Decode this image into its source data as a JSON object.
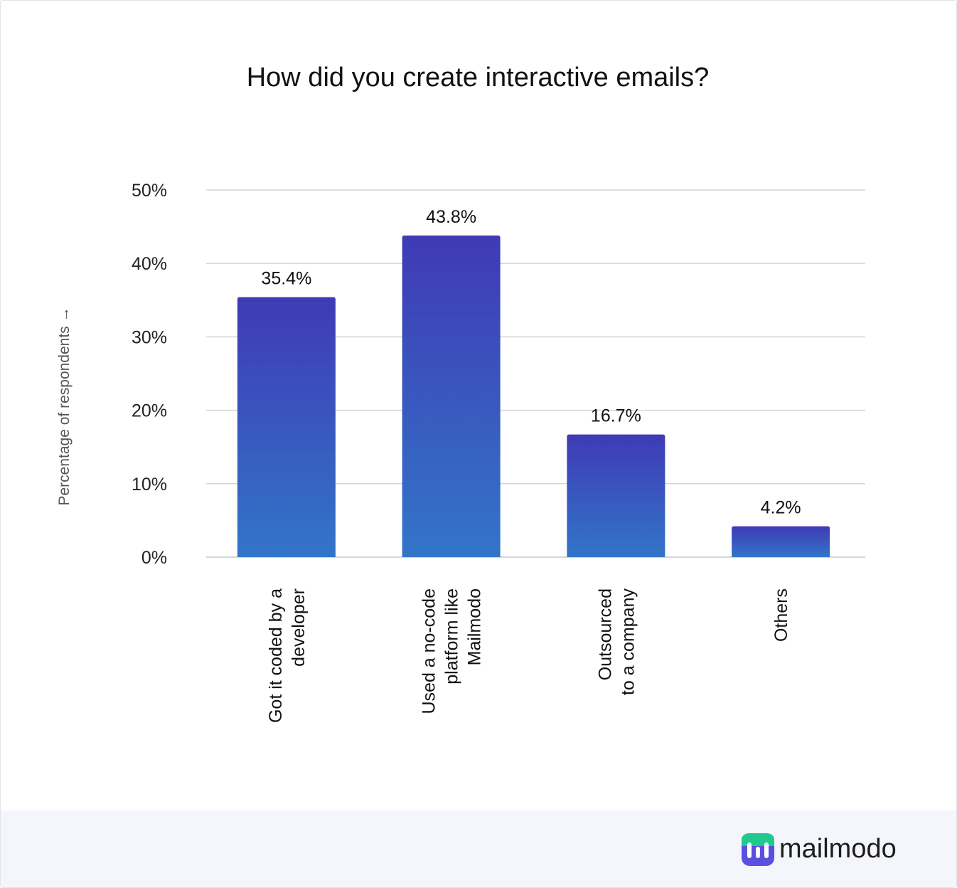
{
  "chart_data": {
    "type": "bar",
    "title": "How did you create interactive emails?",
    "ylabel": "Percentage of respondents →",
    "xlabel": "",
    "ylim": [
      0,
      50
    ],
    "yticks": [
      "0%",
      "10%",
      "20%",
      "30%",
      "40%",
      "50%"
    ],
    "ytick_values": [
      0,
      10,
      20,
      30,
      40,
      50
    ],
    "grid": true,
    "categories": [
      [
        "Got it coded by a",
        "developer"
      ],
      [
        "Used a no-code",
        "platform like",
        "Mailmodo"
      ],
      [
        "Outsourced",
        "to a company"
      ],
      [
        "Others"
      ]
    ],
    "values": [
      35.4,
      43.8,
      16.7,
      4.2
    ],
    "value_labels": [
      "35.4%",
      "43.8%",
      "16.7%",
      "4.2%"
    ],
    "colors": {
      "bar_top": "#3f3ab5",
      "bar_bottom": "#3275c8",
      "grid": "#d6d6d6",
      "footer_bg": "#f4f6fb",
      "logo_bg": "#5b4fe0",
      "logo_accent": "#22c98c"
    }
  },
  "brand": {
    "name": "mailmodo",
    "icon": "mailmodo-logo-icon"
  }
}
